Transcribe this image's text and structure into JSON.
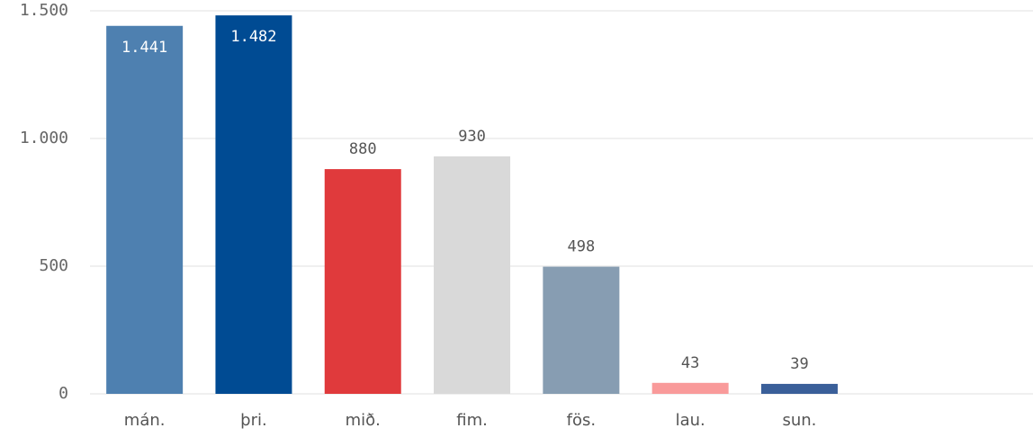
{
  "chart_data": {
    "type": "bar",
    "categories": [
      "mán.",
      "þri.",
      "mið.",
      "fim.",
      "fös.",
      "lau.",
      "sun."
    ],
    "values": [
      1441,
      1482,
      880,
      930,
      498,
      43,
      39
    ],
    "value_labels": [
      "1.441",
      "1.482",
      "880",
      "930",
      "498",
      "43",
      "39"
    ],
    "colors": [
      "#4e80b0",
      "#004b93",
      "#e03a3c",
      "#d9d9d9",
      "#879db2",
      "#f99a9a",
      "#3a5f99"
    ],
    "ylim": [
      0,
      1500
    ],
    "yticks": [
      0,
      500,
      {
        "value": 1000,
        "label": "1.000"
      },
      {
        "value": 1500,
        "label": "1.500"
      }
    ],
    "grid": true
  }
}
